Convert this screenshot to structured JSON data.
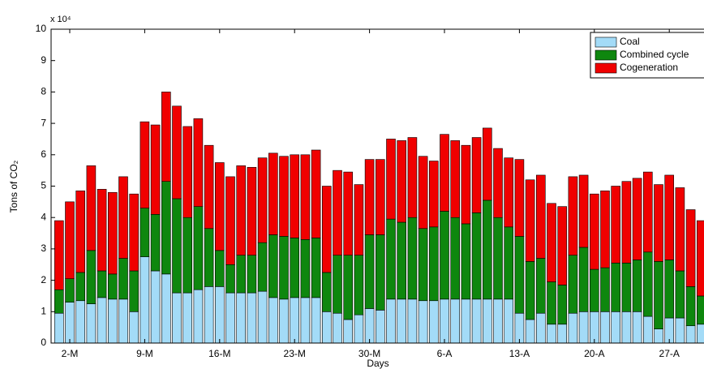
{
  "chart_data": {
    "type": "stacked-bar",
    "multiplier": "x 10⁴",
    "xlabel": "Days",
    "ylabel": "Tons of CO₂",
    "categories": [
      null,
      "2-M",
      null,
      null,
      null,
      null,
      null,
      null,
      "9-M",
      null,
      null,
      null,
      null,
      null,
      null,
      "16-M",
      null,
      null,
      null,
      null,
      null,
      null,
      "23-M",
      null,
      null,
      null,
      null,
      null,
      null,
      "30-M",
      null,
      null,
      null,
      null,
      null,
      null,
      "6-A",
      null,
      null,
      null,
      null,
      null,
      null,
      "13-A",
      null,
      null,
      null,
      null,
      null,
      null,
      "20-A",
      null,
      null,
      null,
      null,
      null,
      null,
      "27-A",
      null,
      null,
      null
    ],
    "series": [
      {
        "name": "Coal",
        "color": "#a3dbf7",
        "values": [
          0.95,
          1.3,
          1.35,
          1.25,
          1.45,
          1.4,
          1.4,
          1.0,
          2.75,
          2.3,
          2.2,
          1.6,
          1.6,
          1.7,
          1.8,
          1.8,
          1.6,
          1.6,
          1.6,
          1.65,
          1.45,
          1.4,
          1.45,
          1.45,
          1.45,
          1.0,
          0.95,
          0.75,
          0.9,
          1.1,
          1.05,
          1.4,
          1.4,
          1.4,
          1.35,
          1.35,
          1.4,
          1.4,
          1.4,
          1.4,
          1.4,
          1.4,
          1.4,
          0.95,
          0.75,
          0.95,
          0.6,
          0.6,
          0.95,
          1.0,
          1.0,
          1.0,
          1.0,
          1.0,
          1.0,
          0.85,
          0.45,
          0.8,
          0.8,
          0.55,
          0.6
        ]
      },
      {
        "name": "Combined cycle",
        "color": "#0e870e",
        "values": [
          0.75,
          0.75,
          0.9,
          1.7,
          0.85,
          0.8,
          1.3,
          1.3,
          1.55,
          1.8,
          2.95,
          3.0,
          2.4,
          2.65,
          1.85,
          1.15,
          0.9,
          1.2,
          1.2,
          1.55,
          2.0,
          2.0,
          1.9,
          1.85,
          1.9,
          1.25,
          1.85,
          2.05,
          1.9,
          2.35,
          2.4,
          2.55,
          2.45,
          2.6,
          2.3,
          2.35,
          2.8,
          2.6,
          2.4,
          2.75,
          3.15,
          2.6,
          2.3,
          2.45,
          1.85,
          1.75,
          1.35,
          1.25,
          1.85,
          2.05,
          1.35,
          1.4,
          1.55,
          1.55,
          1.65,
          2.05,
          2.15,
          1.85,
          1.5,
          1.25,
          0.9
        ]
      },
      {
        "name": "Cogeneration",
        "color": "#f00000",
        "values": [
          2.2,
          2.45,
          2.6,
          2.7,
          2.6,
          2.6,
          2.6,
          2.45,
          2.75,
          2.85,
          2.85,
          2.95,
          2.9,
          2.8,
          2.65,
          2.8,
          2.8,
          2.85,
          2.8,
          2.7,
          2.6,
          2.55,
          2.65,
          2.7,
          2.8,
          2.75,
          2.7,
          2.65,
          2.25,
          2.4,
          2.4,
          2.55,
          2.6,
          2.55,
          2.3,
          2.1,
          2.45,
          2.45,
          2.5,
          2.4,
          2.3,
          2.2,
          2.2,
          2.45,
          2.6,
          2.65,
          2.5,
          2.5,
          2.5,
          2.3,
          2.4,
          2.45,
          2.45,
          2.6,
          2.6,
          2.55,
          2.45,
          2.7,
          2.65,
          2.45,
          2.4
        ]
      }
    ],
    "ylim": [
      0,
      10
    ],
    "yticks": [
      0,
      1,
      2,
      3,
      4,
      5,
      6,
      7,
      8,
      9,
      10
    ],
    "legend": "northeast"
  }
}
